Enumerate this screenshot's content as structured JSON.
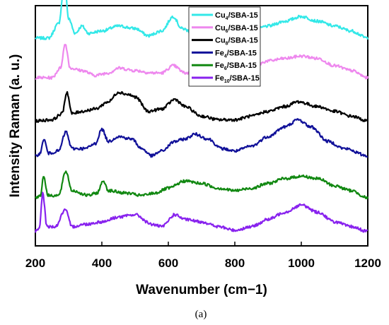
{
  "chart_data": {
    "type": "line",
    "xlabel": "Wavenumber (cm−1)",
    "ylabel": "Intensity Raman (a. u.)",
    "xlim": [
      200,
      1200
    ],
    "xticks": [
      "200",
      "400",
      "600",
      "800",
      "1000",
      "1200"
    ],
    "yticks_shown": false,
    "grid": false,
    "legend_position": "top-center",
    "caption": "(a)",
    "series": [
      {
        "name": "Cu4/SBA-15",
        "legend_base": "Cu",
        "legend_sub": "4",
        "legend_rest": "/SBA-15",
        "color": "#33e8e8",
        "offset": 0.865,
        "points": [
          [
            200,
            0.0
          ],
          [
            240,
            0.0
          ],
          [
            270,
            0.06
          ],
          [
            288,
            0.23
          ],
          [
            300,
            0.08
          ],
          [
            320,
            0.02
          ],
          [
            340,
            0.05
          ],
          [
            360,
            0.02
          ],
          [
            400,
            0.03
          ],
          [
            450,
            0.05
          ],
          [
            500,
            0.04
          ],
          [
            540,
            0.01
          ],
          [
            580,
            0.03
          ],
          [
            615,
            0.09
          ],
          [
            640,
            0.04
          ],
          [
            680,
            0.02
          ],
          [
            720,
            0.02
          ],
          [
            760,
            0.01
          ],
          [
            800,
            0.02
          ],
          [
            850,
            0.03
          ],
          [
            900,
            0.05
          ],
          [
            950,
            0.07
          ],
          [
            1000,
            0.09
          ],
          [
            1050,
            0.07
          ],
          [
            1100,
            0.05
          ],
          [
            1150,
            0.03
          ],
          [
            1200,
            0.0
          ]
        ]
      },
      {
        "name": "Cu6/SBA-15",
        "legend_base": "Cu",
        "legend_sub": "6",
        "legend_rest": "/SBA-15",
        "color": "#ee88ee",
        "offset": 0.7,
        "points": [
          [
            200,
            0.0
          ],
          [
            250,
            0.0
          ],
          [
            275,
            0.04
          ],
          [
            290,
            0.14
          ],
          [
            305,
            0.04
          ],
          [
            340,
            0.03
          ],
          [
            380,
            0.01
          ],
          [
            420,
            0.02
          ],
          [
            450,
            0.04
          ],
          [
            500,
            0.03
          ],
          [
            550,
            0.02
          ],
          [
            580,
            0.02
          ],
          [
            615,
            0.05
          ],
          [
            650,
            0.02
          ],
          [
            700,
            0.01
          ],
          [
            750,
            0.01
          ],
          [
            800,
            0.02
          ],
          [
            850,
            0.04
          ],
          [
            900,
            0.07
          ],
          [
            950,
            0.08
          ],
          [
            1000,
            0.09
          ],
          [
            1050,
            0.08
          ],
          [
            1100,
            0.05
          ],
          [
            1150,
            0.03
          ],
          [
            1200,
            0.0
          ]
        ]
      },
      {
        "name": "Cu8/SBA-15",
        "legend_base": "Cu",
        "legend_sub": "8",
        "legend_rest": "/SBA-15",
        "color": "#000000",
        "offset": 0.52,
        "points": [
          [
            200,
            0.0
          ],
          [
            250,
            0.005
          ],
          [
            280,
            0.03
          ],
          [
            295,
            0.12
          ],
          [
            310,
            0.03
          ],
          [
            340,
            0.04
          ],
          [
            380,
            0.05
          ],
          [
            420,
            0.08
          ],
          [
            450,
            0.12
          ],
          [
            480,
            0.11
          ],
          [
            500,
            0.1
          ],
          [
            540,
            0.04
          ],
          [
            580,
            0.05
          ],
          [
            620,
            0.09
          ],
          [
            650,
            0.06
          ],
          [
            700,
            0.02
          ],
          [
            750,
            0.005
          ],
          [
            800,
            0.005
          ],
          [
            850,
            0.02
          ],
          [
            900,
            0.04
          ],
          [
            950,
            0.06
          ],
          [
            990,
            0.08
          ],
          [
            1050,
            0.06
          ],
          [
            1100,
            0.04
          ],
          [
            1150,
            0.02
          ],
          [
            1200,
            0.0
          ]
        ]
      },
      {
        "name": "Fe4/SBA-15",
        "legend_base": "Fe",
        "legend_sub": "4",
        "legend_rest": "/SBA-15",
        "color": "#111199",
        "offset": 0.375,
        "points": [
          [
            200,
            0.0
          ],
          [
            215,
            0.01
          ],
          [
            225,
            0.07
          ],
          [
            240,
            0.01
          ],
          [
            270,
            0.02
          ],
          [
            292,
            0.1
          ],
          [
            310,
            0.03
          ],
          [
            350,
            0.03
          ],
          [
            380,
            0.05
          ],
          [
            400,
            0.11
          ],
          [
            420,
            0.06
          ],
          [
            450,
            0.08
          ],
          [
            490,
            0.07
          ],
          [
            520,
            0.03
          ],
          [
            550,
            0.0
          ],
          [
            580,
            0.02
          ],
          [
            620,
            0.06
          ],
          [
            650,
            0.07
          ],
          [
            680,
            0.09
          ],
          [
            720,
            0.07
          ],
          [
            760,
            0.03
          ],
          [
            800,
            0.02
          ],
          [
            850,
            0.04
          ],
          [
            900,
            0.08
          ],
          [
            950,
            0.12
          ],
          [
            990,
            0.15
          ],
          [
            1030,
            0.12
          ],
          [
            1080,
            0.06
          ],
          [
            1130,
            0.03
          ],
          [
            1200,
            0.0
          ]
        ]
      },
      {
        "name": "Fe6/SBA-15",
        "legend_base": "Fe",
        "legend_sub": "6",
        "legend_rest": "/SBA-15",
        "color": "#118811",
        "offset": 0.2,
        "points": [
          [
            200,
            0.0
          ],
          [
            215,
            0.01
          ],
          [
            225,
            0.09
          ],
          [
            238,
            0.01
          ],
          [
            270,
            0.01
          ],
          [
            292,
            0.11
          ],
          [
            310,
            0.03
          ],
          [
            360,
            0.01
          ],
          [
            385,
            0.02
          ],
          [
            405,
            0.07
          ],
          [
            420,
            0.03
          ],
          [
            470,
            0.02
          ],
          [
            520,
            0.01
          ],
          [
            560,
            0.02
          ],
          [
            600,
            0.04
          ],
          [
            650,
            0.07
          ],
          [
            700,
            0.06
          ],
          [
            750,
            0.04
          ],
          [
            800,
            0.03
          ],
          [
            850,
            0.04
          ],
          [
            900,
            0.06
          ],
          [
            950,
            0.08
          ],
          [
            1000,
            0.09
          ],
          [
            1050,
            0.08
          ],
          [
            1100,
            0.05
          ],
          [
            1150,
            0.03
          ],
          [
            1200,
            0.0
          ]
        ]
      },
      {
        "name": "Fe10/SBA-15",
        "legend_base": "Fe",
        "legend_sub": "10",
        "legend_rest": "/SBA-15",
        "color": "#8822ee",
        "offset": 0.06,
        "points": [
          [
            200,
            0.0
          ],
          [
            212,
            0.01
          ],
          [
            222,
            0.16
          ],
          [
            235,
            0.02
          ],
          [
            260,
            0.02
          ],
          [
            290,
            0.09
          ],
          [
            310,
            0.02
          ],
          [
            350,
            0.03
          ],
          [
            400,
            0.04
          ],
          [
            450,
            0.06
          ],
          [
            500,
            0.07
          ],
          [
            550,
            0.03
          ],
          [
            580,
            0.02
          ],
          [
            620,
            0.07
          ],
          [
            650,
            0.05
          ],
          [
            700,
            0.04
          ],
          [
            750,
            0.02
          ],
          [
            800,
            0.005
          ],
          [
            850,
            0.02
          ],
          [
            900,
            0.05
          ],
          [
            950,
            0.08
          ],
          [
            1000,
            0.11
          ],
          [
            1050,
            0.08
          ],
          [
            1100,
            0.04
          ],
          [
            1150,
            0.02
          ],
          [
            1200,
            0.0
          ]
        ]
      }
    ]
  }
}
